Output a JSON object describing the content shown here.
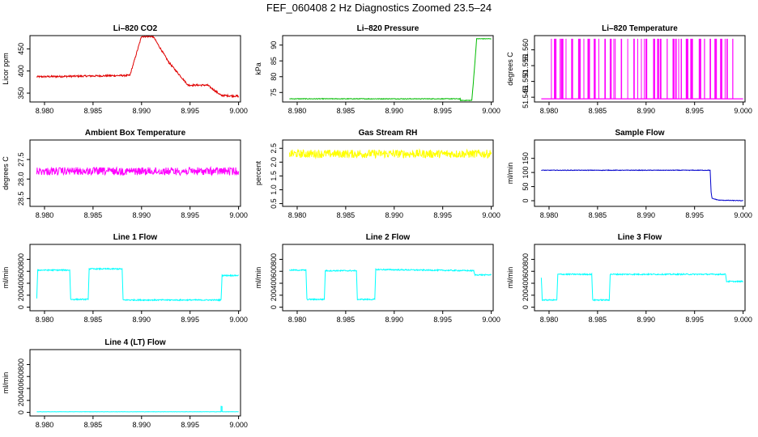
{
  "title": "FEF_060408  2 Hz Diagnostics Zoomed 23.5–24",
  "x_ticks": [
    8.98,
    8.985,
    8.99,
    8.995,
    9.0
  ],
  "x_tick_labels": [
    "8.980",
    "8.985",
    "8.990",
    "8.995",
    "9.000"
  ],
  "chart_data": [
    {
      "type": "line",
      "title": "Li–820 CO2",
      "ylabel": "Licor ppm",
      "color": "#e00000",
      "xlim": [
        8.9785,
        9.0002
      ],
      "ylim": [
        330,
        480
      ],
      "yticks": [
        350,
        400,
        450
      ],
      "ytick_labels": [
        "350",
        "400",
        "450"
      ],
      "noise": 2,
      "series": [
        {
          "x": [
            8.9792,
            8.9888,
            8.9888,
            8.99,
            8.99,
            8.9912,
            8.9912,
            8.9928,
            8.9928,
            8.9948,
            8.9948,
            8.9968,
            8.9968,
            8.9982,
            8.9982,
            9.0
          ],
          "y": [
            387,
            390,
            390,
            478,
            478,
            478,
            478,
            420,
            420,
            368,
            368,
            368,
            368,
            345,
            345,
            343
          ]
        }
      ]
    },
    {
      "type": "line",
      "title": "Li–820 Pressure",
      "ylabel": "kPa",
      "color": "#00bb00",
      "xlim": [
        8.9785,
        9.0002
      ],
      "ylim": [
        72,
        93
      ],
      "yticks": [
        75,
        80,
        85,
        90
      ],
      "ytick_labels": [
        "75",
        "80",
        "85",
        "90"
      ],
      "noise": 0.1,
      "series": [
        {
          "x": [
            8.9792,
            8.9968,
            8.9968,
            8.998,
            8.9982,
            8.9985,
            8.9986,
            9.0
          ],
          "y": [
            73,
            73,
            72.5,
            72.5,
            80,
            92,
            92,
            92
          ]
        }
      ]
    },
    {
      "type": "line",
      "title": "Li–820 Temperature",
      "ylabel": "degrees C",
      "color": "#ff00ff",
      "xlim": [
        8.9785,
        9.0002
      ],
      "ylim": [
        51.5435,
        51.5645
      ],
      "yticks": [
        51.545,
        51.55,
        51.555,
        51.56
      ],
      "ytick_labels": [
        "51.545",
        "51.550",
        "51.555",
        "51.560"
      ],
      "noise": 0,
      "spikes": {
        "base": 51.5445,
        "top": 51.5635,
        "x_start": 8.9802,
        "x_end": 8.999
      }
    },
    {
      "type": "line",
      "title": "Ambient Box Temperature",
      "ylabel": "degrees C",
      "color": "#ff00ff",
      "xlim": [
        8.9785,
        9.0002
      ],
      "ylim": [
        28.7,
        27.0
      ],
      "yticks": [
        27.5,
        28.0,
        28.5
      ],
      "ytick_labels": [
        "27.5",
        "28.0",
        "28.5"
      ],
      "noise": 0.1,
      "series": [
        {
          "x": [
            8.9792,
            9.0
          ],
          "y": [
            27.8,
            27.8
          ]
        }
      ]
    },
    {
      "type": "line",
      "title": "Gas Stream RH",
      "ylabel": "percent",
      "color": "#ffff00",
      "xlim": [
        8.9785,
        9.0002
      ],
      "ylim": [
        0.4,
        2.8
      ],
      "yticks": [
        0.5,
        1.0,
        1.5,
        2.0,
        2.5
      ],
      "ytick_labels": [
        "0.5",
        "1.0",
        "1.5",
        "2.0",
        "2.5"
      ],
      "noise": 0.15,
      "series": [
        {
          "x": [
            8.9792,
            9.0
          ],
          "y": [
            2.3,
            2.3
          ]
        }
      ]
    },
    {
      "type": "line",
      "title": "Sample Flow",
      "ylabel": "ml/min",
      "color": "#0000cc",
      "xlim": [
        8.9785,
        9.0002
      ],
      "ylim": [
        -20,
        215
      ],
      "yticks": [
        0,
        50,
        100,
        150
      ],
      "ytick_labels": [
        "0",
        "50",
        "100",
        "150"
      ],
      "noise": 1,
      "series": [
        {
          "x": [
            8.9792,
            8.9966,
            8.9967,
            8.9968,
            8.9975,
            9.0
          ],
          "y": [
            108,
            108,
            30,
            8,
            2,
            0
          ]
        }
      ]
    },
    {
      "type": "line",
      "title": "Line 1 Flow",
      "ylabel": "ml/min",
      "color": "#00ffff",
      "xlim": [
        8.9785,
        9.0002
      ],
      "ylim": [
        -60,
        1050
      ],
      "yticks": [
        0,
        200,
        400,
        600,
        800
      ],
      "ytick_labels": [
        "0",
        "200",
        "400",
        "600",
        "800"
      ],
      "noise": 10,
      "series": [
        {
          "x": [
            8.9792,
            8.9793,
            8.9826,
            8.9827,
            8.9845,
            8.9846,
            8.988,
            8.9881,
            8.9982,
            8.9983,
            9.0
          ],
          "y": [
            150,
            620,
            620,
            130,
            130,
            640,
            640,
            120,
            120,
            530,
            530
          ]
        }
      ]
    },
    {
      "type": "line",
      "title": "Line 2 Flow",
      "ylabel": "ml/min",
      "color": "#00ffff",
      "xlim": [
        8.9785,
        9.0002
      ],
      "ylim": [
        -60,
        1050
      ],
      "yticks": [
        0,
        200,
        400,
        600,
        800
      ],
      "ytick_labels": [
        "0",
        "200",
        "400",
        "600",
        "800"
      ],
      "noise": 10,
      "series": [
        {
          "x": [
            8.9792,
            8.9809,
            8.981,
            8.9828,
            8.9829,
            8.9861,
            8.9862,
            8.988,
            8.9881,
            8.9982,
            8.9983,
            9.0
          ],
          "y": [
            620,
            620,
            130,
            130,
            610,
            610,
            130,
            130,
            630,
            610,
            540,
            540
          ]
        }
      ]
    },
    {
      "type": "line",
      "title": "Line 3 Flow",
      "ylabel": "ml/min",
      "color": "#00ffff",
      "xlim": [
        8.9785,
        9.0002
      ],
      "ylim": [
        -60,
        1050
      ],
      "yticks": [
        0,
        200,
        400,
        600,
        800
      ],
      "ytick_labels": [
        "0",
        "200",
        "400",
        "600",
        "800"
      ],
      "noise": 10,
      "series": [
        {
          "x": [
            8.9792,
            8.9793,
            8.9808,
            8.9809,
            8.9844,
            8.9845,
            8.9862,
            8.9863,
            8.9982,
            8.9983,
            9.0
          ],
          "y": [
            500,
            120,
            120,
            550,
            550,
            120,
            120,
            550,
            550,
            430,
            430
          ]
        }
      ]
    },
    {
      "type": "line",
      "title": "Line 4 (LT) Flow",
      "ylabel": "ml/min",
      "color": "#00ffff",
      "xlim": [
        8.9785,
        9.0002
      ],
      "ylim": [
        -60,
        1050
      ],
      "yticks": [
        0,
        200,
        400,
        600,
        800
      ],
      "ytick_labels": [
        "0",
        "200",
        "400",
        "600",
        "800"
      ],
      "noise": 2,
      "series": [
        {
          "x": [
            8.9792,
            8.9982,
            8.9982,
            8.9983,
            8.9983,
            9.0
          ],
          "y": [
            10,
            10,
            100,
            100,
            10,
            10
          ]
        }
      ]
    }
  ]
}
